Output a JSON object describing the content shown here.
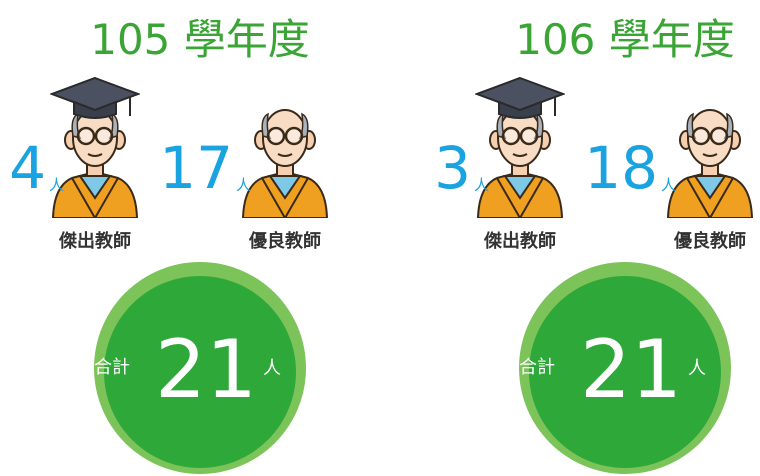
{
  "panels": [
    {
      "title": "105 學年度",
      "items": [
        {
          "count": 4,
          "unit": "人",
          "label": "傑出教師"
        },
        {
          "count": 17,
          "unit": "人",
          "label": "優良教師"
        }
      ],
      "total": {
        "label": "合計",
        "count": 21,
        "unit": "人"
      }
    },
    {
      "title": "106 學年度",
      "items": [
        {
          "count": 3,
          "unit": "人",
          "label": "傑出教師"
        },
        {
          "count": 18,
          "unit": "人",
          "label": "優良教師"
        }
      ],
      "total": {
        "label": "合計",
        "count": 21,
        "unit": "人"
      }
    }
  ]
}
